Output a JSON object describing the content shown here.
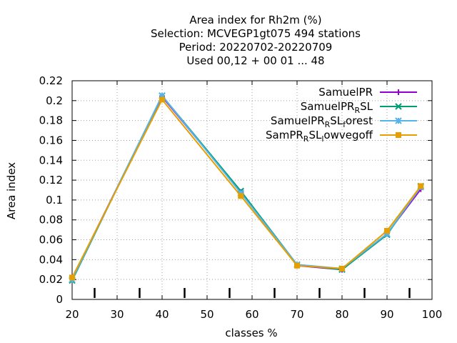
{
  "chart_data": {
    "type": "line",
    "title_lines": [
      "Area index  for Rh2m (%)",
      "Selection: MCVEGP1gt075    494 stations",
      "Period: 20220702-20220709",
      "Used  00,12  + 00 01 ... 48"
    ],
    "xlabel": "classes %",
    "ylabel": "Area index",
    "xlim": [
      20,
      100
    ],
    "ylim": [
      0,
      0.22
    ],
    "xticks": [
      20,
      30,
      40,
      50,
      60,
      70,
      80,
      90,
      100
    ],
    "yticks": [
      0,
      0.02,
      0.04,
      0.06,
      0.08,
      0.1,
      0.12,
      0.14,
      0.16,
      0.18,
      0.2,
      0.22
    ],
    "ytick_labels": [
      "0",
      "0.02",
      "0.04",
      "0.06",
      "0.08",
      "0.1",
      "0.12",
      "0.14",
      "0.16",
      "0.18",
      "0.2",
      "0.22"
    ],
    "grid": true,
    "legend_position": "top-right",
    "x": [
      20,
      40,
      57.5,
      70,
      80,
      90,
      97.5
    ],
    "bottom_ticks": [
      25,
      35,
      45,
      55,
      65,
      75,
      85,
      95
    ],
    "series": [
      {
        "name": "SamuelPR",
        "legend_main": "SamuelPR",
        "legend_sub": "",
        "legend_rest": "",
        "color": "#9400d3",
        "marker": "plus",
        "values": [
          0.021,
          0.204,
          0.108,
          0.034,
          0.03,
          0.066,
          0.111
        ]
      },
      {
        "name": "SamuelPR_RSL",
        "legend_main": "SamuelPR",
        "legend_sub": "R",
        "legend_rest": "SL",
        "color": "#009e73",
        "marker": "cross",
        "values": [
          0.019,
          0.205,
          0.109,
          0.035,
          0.03,
          0.065,
          0.114
        ]
      },
      {
        "name": "SamuelPR_RSL_forest",
        "legend_main": "SamuelPR",
        "legend_sub": "R",
        "legend_rest": "SL",
        "legend_sub2": "f",
        "legend_rest2": "orest",
        "color": "#56b4e9",
        "marker": "star",
        "values": [
          0.02,
          0.205,
          0.107,
          0.035,
          0.031,
          0.066,
          0.113
        ]
      },
      {
        "name": "SamPR_RSL_lowvegoff",
        "legend_main": "SamPR",
        "legend_sub": "R",
        "legend_rest": "SL",
        "legend_sub2": "l",
        "legend_rest2": "owvegoff",
        "color": "#e69f00",
        "marker": "box",
        "values": [
          0.022,
          0.201,
          0.104,
          0.034,
          0.031,
          0.069,
          0.114
        ]
      }
    ]
  }
}
